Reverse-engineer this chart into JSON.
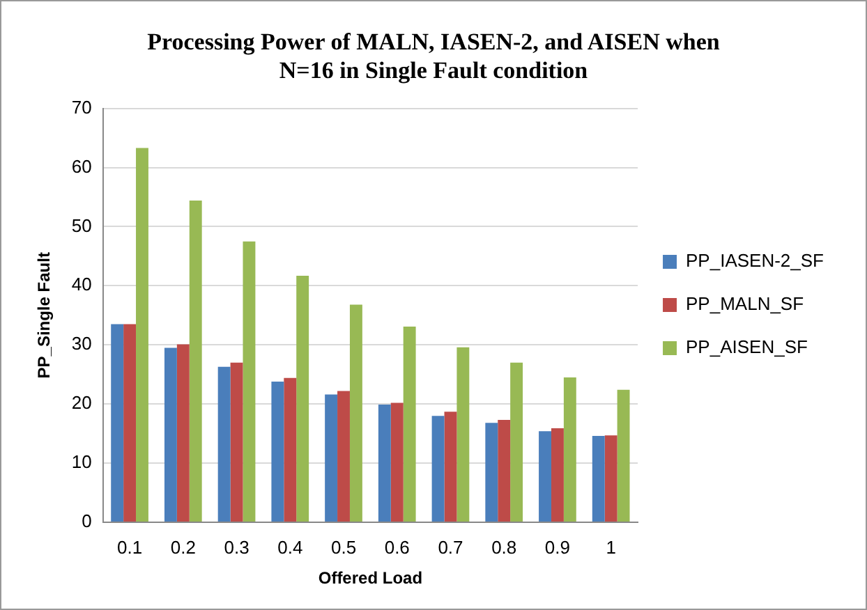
{
  "chart_data": {
    "type": "bar",
    "title": "Processing Power of MALN, IASEN-2, and AISEN when N=16 in Single Fault condition",
    "xlabel": "Offered Load",
    "ylabel": "PP_Single Fault",
    "categories": [
      "0.1",
      "0.2",
      "0.3",
      "0.4",
      "0.5",
      "0.6",
      "0.7",
      "0.8",
      "0.9",
      "1"
    ],
    "series": [
      {
        "name": "PP_IASEN-2_SF",
        "color": "#4a7ebb",
        "values": [
          33.5,
          29.5,
          26.3,
          23.8,
          21.6,
          19.9,
          18.0,
          16.8,
          15.4,
          14.6
        ]
      },
      {
        "name": "PP_MALN_SF",
        "color": "#be4b48",
        "values": [
          33.5,
          30.1,
          27.0,
          24.4,
          22.2,
          20.2,
          18.7,
          17.3,
          15.9,
          14.7
        ]
      },
      {
        "name": "PP_AISEN_SF",
        "color": "#98b954",
        "values": [
          63.3,
          54.4,
          47.5,
          41.7,
          36.8,
          33.1,
          29.6,
          27.0,
          24.5,
          22.4
        ]
      }
    ],
    "ylim": [
      0,
      70
    ],
    "yticks": [
      0,
      10,
      20,
      30,
      40,
      50,
      60,
      70
    ],
    "grid": "y",
    "legend": "right"
  }
}
